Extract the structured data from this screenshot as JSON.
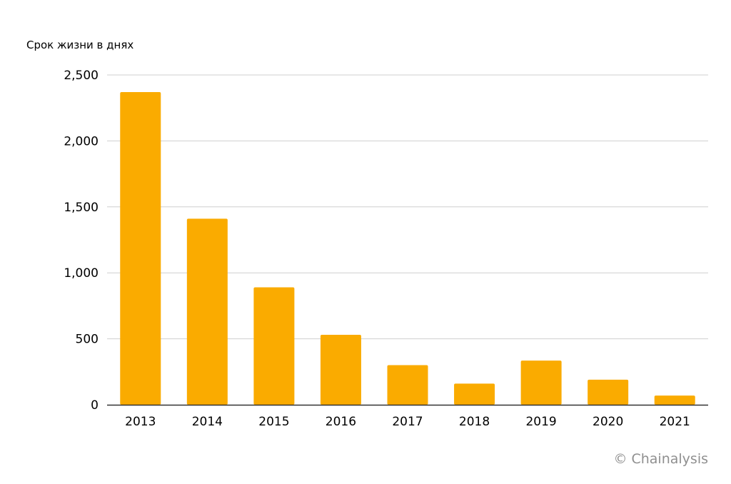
{
  "chart_data": {
    "type": "bar",
    "ylabel": "Срок жизни в днях",
    "xlabel": "",
    "categories": [
      "2013",
      "2014",
      "2015",
      "2016",
      "2017",
      "2018",
      "2019",
      "2020",
      "2021"
    ],
    "values": [
      2370,
      1410,
      890,
      530,
      300,
      160,
      335,
      190,
      70
    ],
    "ylim": [
      0,
      2500
    ],
    "yticks": [
      0,
      500,
      1000,
      1500,
      2000,
      2500
    ],
    "ytick_labels": [
      "0",
      "500",
      "1,000",
      "1,500",
      "2,000",
      "2,500"
    ],
    "grid": true,
    "bar_color": "#FAAB00"
  },
  "credit": "© Chainalysis"
}
